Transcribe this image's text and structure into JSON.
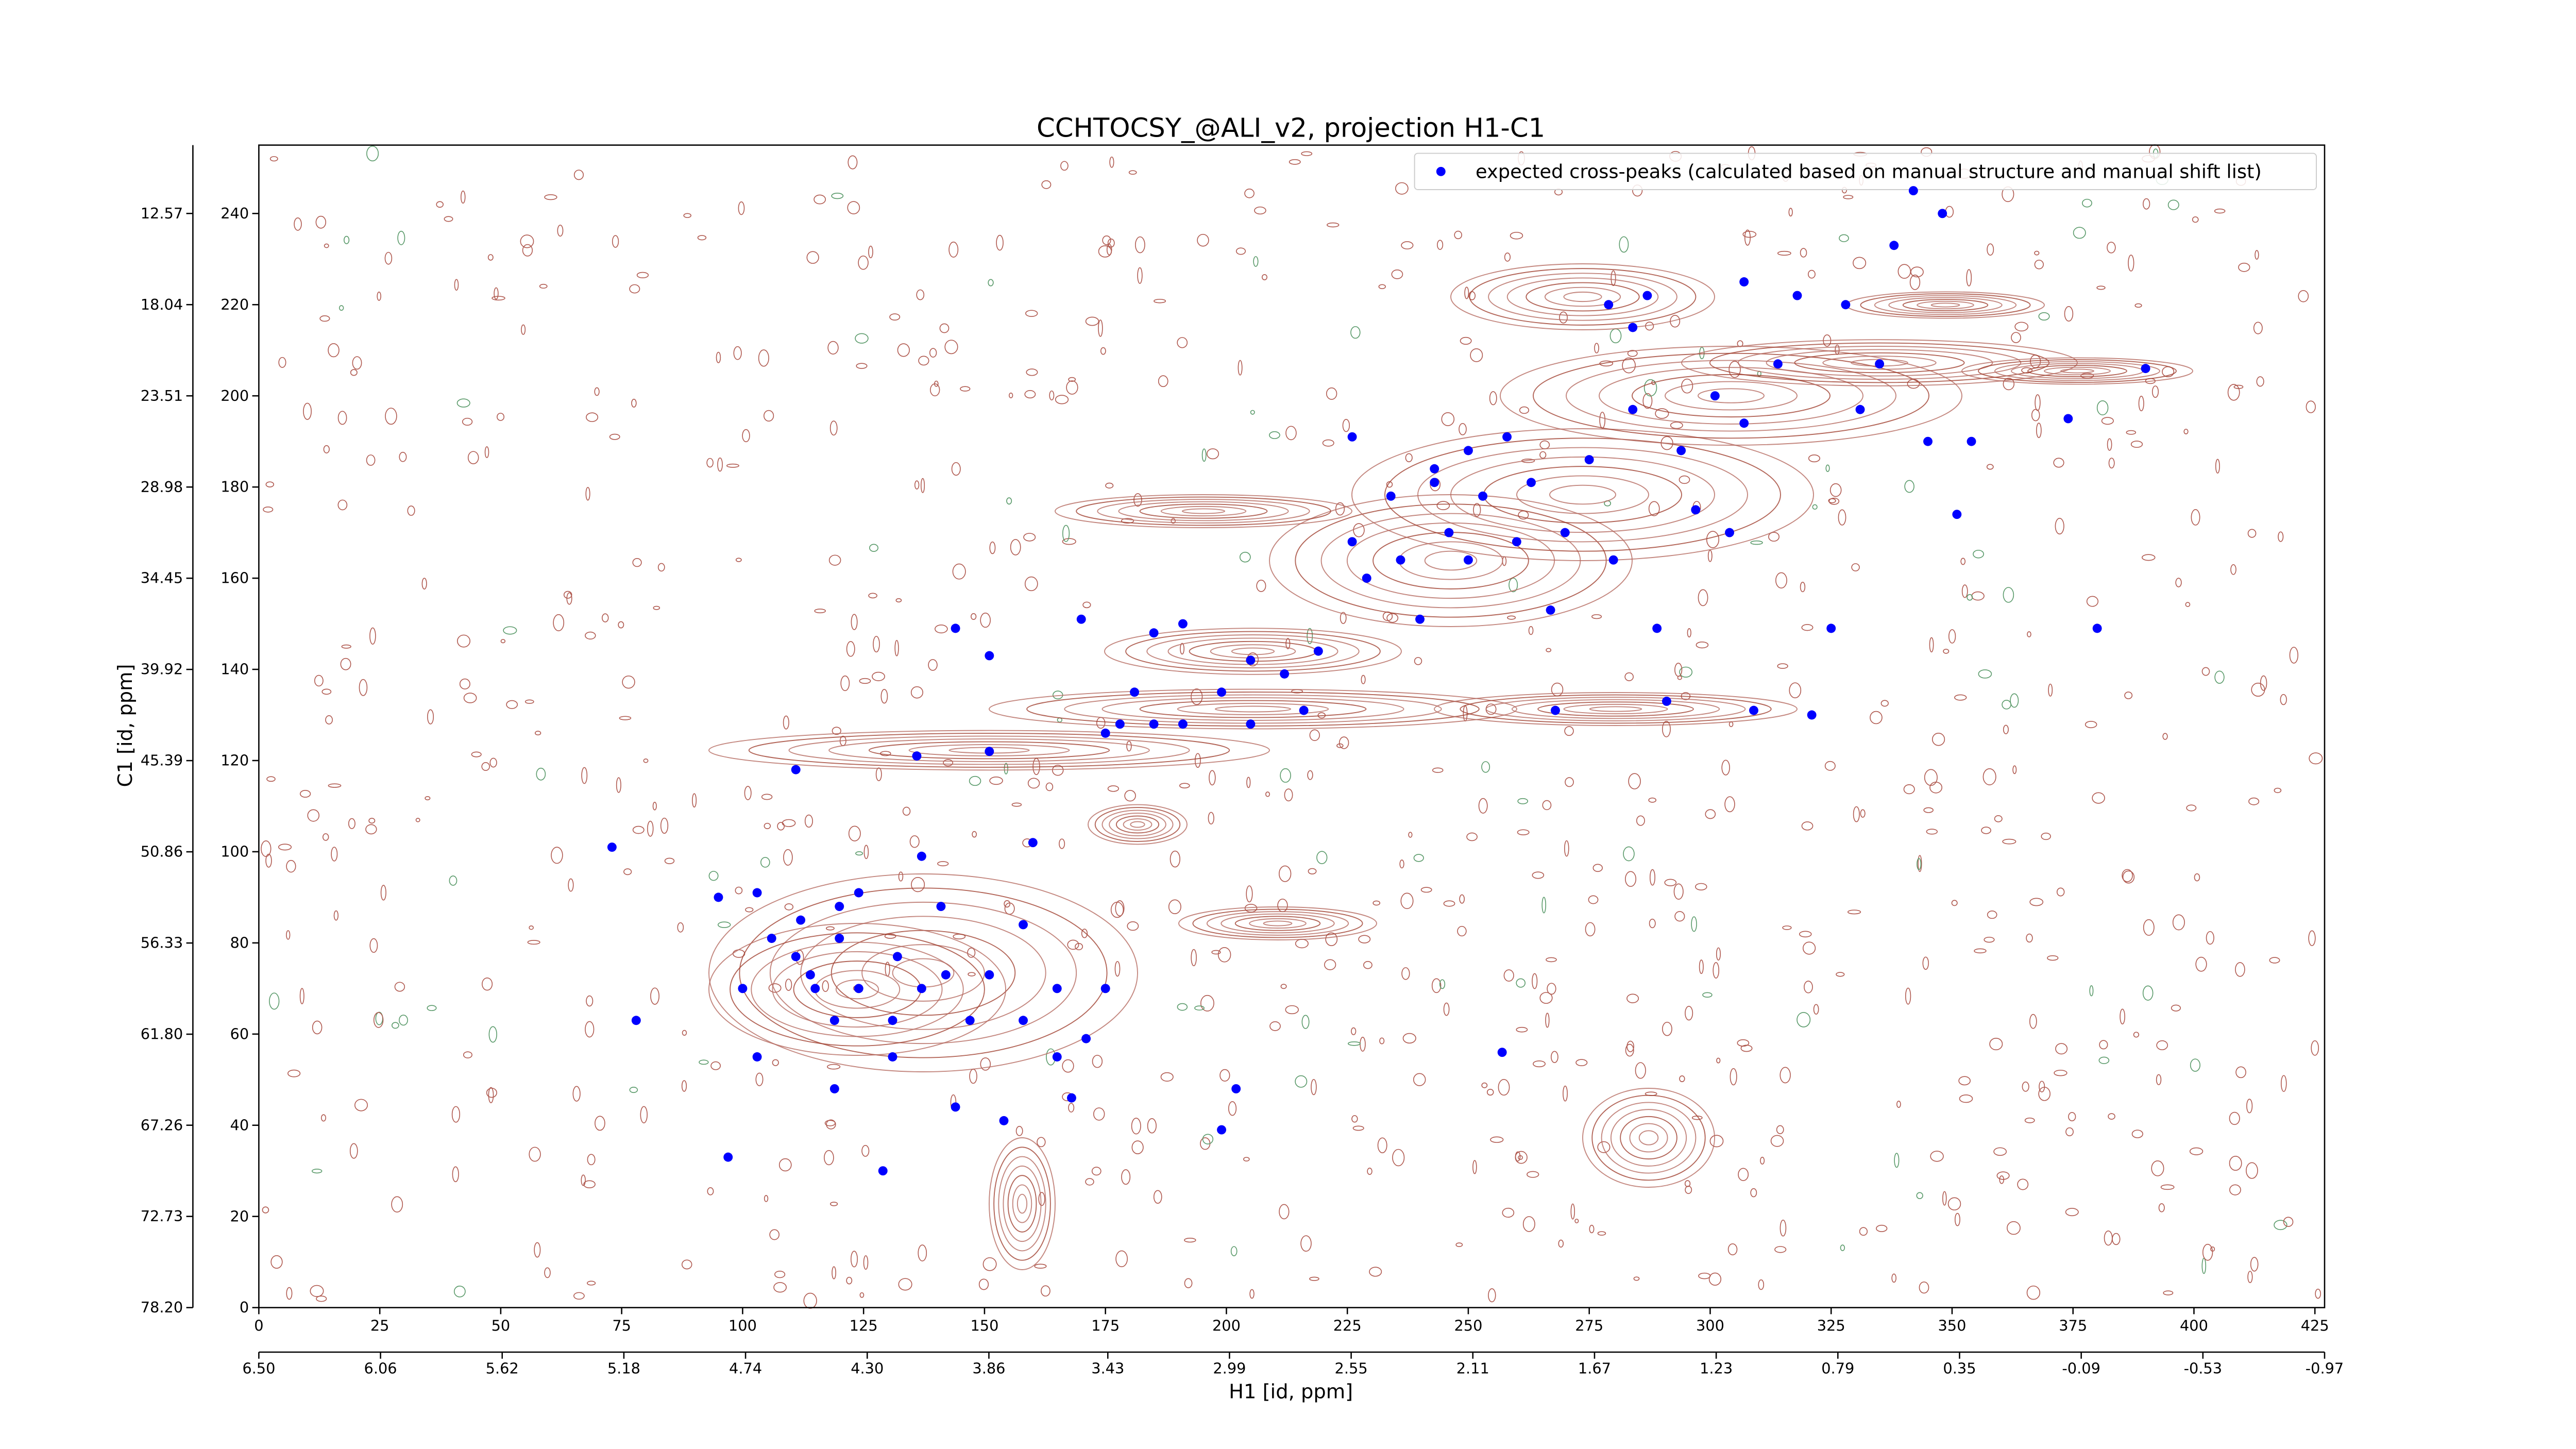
{
  "chart_data": {
    "type": "scatter",
    "title": "CCHTOCSY_@ALI_v2, projection H1-C1",
    "xlabel": "H1 [id, ppm]",
    "ylabel": "C1 [id, ppm]",
    "xlim": [
      0,
      427
    ],
    "xticks": [
      0,
      25,
      50,
      75,
      100,
      125,
      150,
      175,
      200,
      225,
      250,
      275,
      300,
      325,
      350,
      375,
      400,
      425
    ],
    "x2lim": [
      6.5,
      -0.97
    ],
    "x2ticks": [
      {
        "value": 6.5,
        "label": "6.50"
      },
      6.06,
      5.62,
      5.18,
      4.74,
      {
        "value": 4.3,
        "label": "4.30"
      },
      3.86,
      3.43,
      2.99,
      2.55,
      2.11,
      1.67,
      1.23,
      0.79,
      0.35,
      -0.09,
      -0.53,
      -0.97
    ],
    "ylim": [
      0,
      255
    ],
    "yticks": [
      0,
      20,
      40,
      60,
      80,
      100,
      120,
      140,
      160,
      180,
      200,
      220,
      240
    ],
    "y2lim": [
      78.2,
      8.47
    ],
    "y2ticks": [
      {
        "value": 78.2,
        "label": "78.20"
      },
      72.73,
      67.26,
      {
        "value": 61.8,
        "label": "61.80"
      },
      56.33,
      50.86,
      45.39,
      39.92,
      34.45,
      28.98,
      23.51,
      18.04,
      12.57
    ],
    "legend": "upper right",
    "series": [
      {
        "name": "expected cross-peaks (calculated based on manual structure and manual shift list)",
        "color": "#0000ff",
        "x": [
          73,
          78,
          97,
          95,
          103,
          111,
          112,
          114,
          119,
          120,
          124,
          129,
          132,
          136,
          137,
          141,
          144,
          147,
          151,
          151,
          154,
          158,
          160,
          165,
          170,
          175,
          178,
          181,
          185,
          191,
          199,
          202,
          199,
          205,
          212,
          216,
          219,
          226,
          226,
          229,
          234,
          240,
          243,
          246,
          250,
          253,
          257,
          258,
          263,
          267,
          268,
          270,
          275,
          279,
          280,
          284,
          287,
          289,
          291,
          294,
          297,
          301,
          304,
          307,
          309,
          314,
          318,
          321,
          325,
          328,
          331,
          335,
          338,
          342,
          345,
          351,
          354,
          374,
          380,
          390,
          348,
          307,
          284,
          243,
          250,
          260,
          236,
          205,
          191,
          185,
          175,
          124,
          111,
          119,
          103,
          100,
          106,
          131,
          137,
          142,
          151,
          158,
          165,
          144,
          168,
          171,
          131,
          120,
          115
        ],
        "values": [
          101,
          63,
          33,
          90,
          91,
          118,
          85,
          73,
          48,
          81,
          70,
          30,
          77,
          121,
          99,
          88,
          149,
          63,
          122,
          143,
          41,
          84,
          102,
          55,
          151,
          70,
          128,
          135,
          148,
          128,
          39,
          48,
          135,
          128,
          139,
          131,
          144,
          191,
          168,
          160,
          178,
          151,
          181,
          170,
          164,
          178,
          56,
          191,
          181,
          153,
          131,
          170,
          186,
          220,
          164,
          197,
          222,
          149,
          133,
          188,
          175,
          200,
          170,
          194,
          131,
          207,
          222,
          130,
          149,
          220,
          197,
          207,
          233,
          245,
          190,
          174,
          190,
          195,
          149,
          206,
          240,
          225,
          215,
          184,
          188,
          168,
          164,
          142,
          150,
          128,
          126,
          91,
          77,
          63,
          55,
          70,
          81,
          55,
          70,
          73,
          73,
          63,
          70,
          44,
          46,
          59,
          63,
          88,
          70
        ]
      }
    ]
  }
}
